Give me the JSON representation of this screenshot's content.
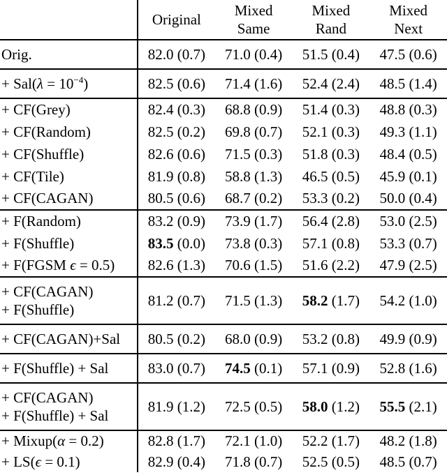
{
  "page": {
    "background_color": "#ffffff",
    "text_color": "#000000",
    "rule_color": "#000000"
  },
  "table": {
    "corner_label": "",
    "columns": [
      {
        "lines": [
          "Original"
        ]
      },
      {
        "lines": [
          "Mixed",
          "Same"
        ]
      },
      {
        "lines": [
          "Mixed",
          "Rand"
        ]
      },
      {
        "lines": [
          "Mixed",
          "Next"
        ]
      }
    ],
    "groups": [
      {
        "rows": [
          {
            "label": [
              {
                "t": "Orig."
              }
            ],
            "cells": [
              {
                "v": "82.0",
                "s": "(0.7)"
              },
              {
                "v": "71.0",
                "s": "(0.4)"
              },
              {
                "v": "51.5",
                "s": "(0.4)"
              },
              {
                "v": "47.5",
                "s": "(0.6)"
              }
            ]
          }
        ]
      },
      {
        "rows": [
          {
            "label": [
              {
                "t": "+ Sal("
              },
              {
                "t": "λ",
                "i": true
              },
              {
                "t": " = 10"
              },
              {
                "t": "−4",
                "sup": true
              },
              {
                "t": ")"
              }
            ],
            "cells": [
              {
                "v": "82.5",
                "s": "(0.6)"
              },
              {
                "v": "71.4",
                "s": "(1.6)"
              },
              {
                "v": "52.4",
                "s": "(2.4)"
              },
              {
                "v": "48.5",
                "s": "(1.4)"
              }
            ]
          }
        ]
      },
      {
        "rows": [
          {
            "label": [
              {
                "t": "+ CF(Grey)"
              }
            ],
            "cells": [
              {
                "v": "82.4",
                "s": "(0.3)"
              },
              {
                "v": "68.8",
                "s": "(0.9)"
              },
              {
                "v": "51.4",
                "s": "(0.3)"
              },
              {
                "v": "48.8",
                "s": "(0.3)"
              }
            ]
          },
          {
            "label": [
              {
                "t": "+ CF(Random)"
              }
            ],
            "cells": [
              {
                "v": "82.5",
                "s": "(0.2)"
              },
              {
                "v": "69.8",
                "s": "(0.7)"
              },
              {
                "v": "52.1",
                "s": "(0.3)"
              },
              {
                "v": "49.3",
                "s": "(1.1)"
              }
            ]
          },
          {
            "label": [
              {
                "t": "+ CF(Shuffle)"
              }
            ],
            "cells": [
              {
                "v": "82.6",
                "s": "(0.6)"
              },
              {
                "v": "71.5",
                "s": "(0.3)"
              },
              {
                "v": "51.8",
                "s": "(0.3)"
              },
              {
                "v": "48.4",
                "s": "(0.5)"
              }
            ]
          },
          {
            "label": [
              {
                "t": "+ CF(Tile)"
              }
            ],
            "cells": [
              {
                "v": "81.9",
                "s": "(0.8)"
              },
              {
                "v": "58.8",
                "s": "(1.3)"
              },
              {
                "v": "46.5",
                "s": "(0.5)"
              },
              {
                "v": "45.9",
                "s": "(0.1)"
              }
            ]
          },
          {
            "label": [
              {
                "t": "+ CF(CAGAN)"
              }
            ],
            "cells": [
              {
                "v": "80.5",
                "s": "(0.6)"
              },
              {
                "v": "68.7",
                "s": "(0.2)"
              },
              {
                "v": "53.3",
                "s": "(0.2)"
              },
              {
                "v": "50.0",
                "s": "(0.4)"
              }
            ]
          }
        ]
      },
      {
        "rows": [
          {
            "label": [
              {
                "t": "+ F(Random)"
              }
            ],
            "cells": [
              {
                "v": "83.2",
                "s": "(0.9)"
              },
              {
                "v": "73.9",
                "s": "(1.7)"
              },
              {
                "v": "56.4",
                "s": "(2.8)"
              },
              {
                "v": "53.0",
                "s": "(2.5)"
              }
            ]
          },
          {
            "label": [
              {
                "t": "+ F(Shuffle)"
              }
            ],
            "cells": [
              {
                "v": "83.5",
                "s": "(0.0)",
                "bold": true
              },
              {
                "v": "73.8",
                "s": "(0.3)"
              },
              {
                "v": "57.1",
                "s": "(0.8)"
              },
              {
                "v": "53.3",
                "s": "(0.7)"
              }
            ]
          },
          {
            "label": [
              {
                "t": "+ F(FGSM "
              },
              {
                "t": "ϵ",
                "i": true
              },
              {
                "t": " = 0.5)"
              }
            ],
            "cells": [
              {
                "v": "82.6",
                "s": "(1.3)"
              },
              {
                "v": "70.6",
                "s": "(1.5)"
              },
              {
                "v": "51.6",
                "s": "(2.2)"
              },
              {
                "v": "47.9",
                "s": "(2.5)"
              }
            ]
          }
        ]
      },
      {
        "rows": [
          {
            "label": [
              {
                "t": "+ CF(CAGAN)",
                "br": true
              },
              {
                "t": "+ F(Shuffle)"
              }
            ],
            "cells": [
              {
                "v": "81.2",
                "s": "(0.7)"
              },
              {
                "v": "71.5",
                "s": "(1.3)"
              },
              {
                "v": "58.2",
                "s": "(1.7)",
                "bold": true
              },
              {
                "v": "54.2",
                "s": "(1.0)"
              }
            ]
          }
        ]
      },
      {
        "rows": [
          {
            "label": [
              {
                "t": "+ CF(CAGAN)+Sal"
              }
            ],
            "cells": [
              {
                "v": "80.5",
                "s": "(0.2)"
              },
              {
                "v": "68.0",
                "s": "(0.9)"
              },
              {
                "v": "53.2",
                "s": "(0.8)"
              },
              {
                "v": "49.9",
                "s": "(0.9)"
              }
            ]
          }
        ]
      },
      {
        "rows": [
          {
            "label": [
              {
                "t": "+ F(Shuffle) + Sal"
              }
            ],
            "cells": [
              {
                "v": "83.0",
                "s": "(0.7)"
              },
              {
                "v": "74.5",
                "s": "(0.1)",
                "bold": true
              },
              {
                "v": "57.1",
                "s": "(0.9)"
              },
              {
                "v": "52.8",
                "s": "(1.6)"
              }
            ]
          }
        ]
      },
      {
        "rows": [
          {
            "label": [
              {
                "t": "+ CF(CAGAN)",
                "br": true
              },
              {
                "t": "+ F(Shuffle) + Sal"
              }
            ],
            "cells": [
              {
                "v": "81.9",
                "s": "(1.2)"
              },
              {
                "v": "72.5",
                "s": "(0.5)"
              },
              {
                "v": "58.0",
                "s": "(1.2)",
                "bold": true
              },
              {
                "v": "55.5",
                "s": "(2.1)",
                "bold": true
              }
            ]
          }
        ]
      },
      {
        "rows": [
          {
            "label": [
              {
                "t": "+ Mixup("
              },
              {
                "t": "α",
                "i": true
              },
              {
                "t": " = 0.2)"
              }
            ],
            "cells": [
              {
                "v": "82.8",
                "s": "(1.7)"
              },
              {
                "v": "72.1",
                "s": "(1.0)"
              },
              {
                "v": "52.2",
                "s": "(1.7)"
              },
              {
                "v": "48.2",
                "s": "(1.8)"
              }
            ]
          },
          {
            "label": [
              {
                "t": "+ LS("
              },
              {
                "t": "ϵ",
                "i": true
              },
              {
                "t": " = 0.1)"
              }
            ],
            "cells": [
              {
                "v": "82.9",
                "s": "(0.4)"
              },
              {
                "v": "71.8",
                "s": "(0.7)"
              },
              {
                "v": "52.5",
                "s": "(0.5)"
              },
              {
                "v": "48.5",
                "s": "(0.7)"
              }
            ]
          }
        ]
      }
    ]
  }
}
